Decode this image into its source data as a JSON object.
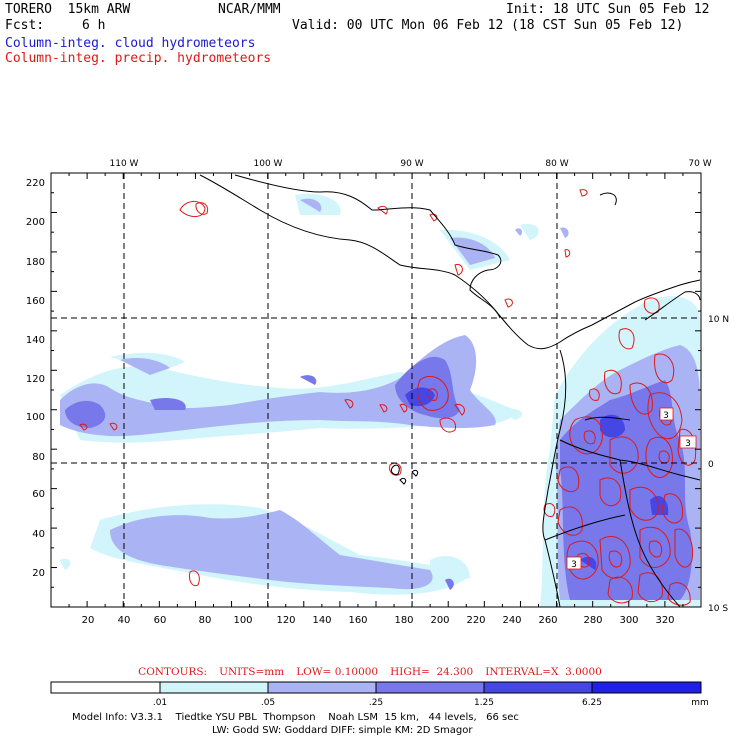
{
  "header": {
    "model": "TORERO  15km ARW",
    "org": "NCAR/MMM",
    "init": "Init: 18 UTC Sun 05 Feb 12",
    "fcst_label": "Fcst:",
    "fcst_value": "6 h",
    "valid": "Valid: 00 UTC Mon 06 Feb 12 (18 CST Sun 05 Feb 12)",
    "field1": "Column-integ. cloud hydrometeors",
    "field2": "Column-integ. precip. hydrometeors"
  },
  "colors": {
    "field1": "#1a1acc",
    "field2": "#e01818",
    "coast": "#000000"
  },
  "map": {
    "x_ticks": [
      "20",
      "40",
      "60",
      "80",
      "100",
      "120",
      "140",
      "160",
      "180",
      "200",
      "220",
      "240",
      "260",
      "280",
      "300",
      "320"
    ],
    "y_ticks": [
      "20",
      "40",
      "60",
      "80",
      "100",
      "120",
      "140",
      "160",
      "180",
      "200",
      "220"
    ],
    "lon_labels": [
      "110 W",
      "100 W",
      "90 W",
      "80 W",
      "70 W"
    ],
    "lat_labels": [
      "10 N",
      "0",
      "10 S"
    ],
    "contour_labels": [
      "3",
      "3",
      "3"
    ]
  },
  "contour_info": {
    "contours": "CONTOURS:",
    "units": "UNITS=mm",
    "low": "LOW= 0.10000",
    "high": "HIGH=  24.300",
    "interval": "INTERVAL=X  3.0000"
  },
  "colorbar": {
    "labels": [
      ".01",
      ".05",
      ".25",
      "1.25",
      "6.25"
    ],
    "unit": "mm",
    "colors": [
      "#ffffff",
      "#d2f5fb",
      "#aab4f5",
      "#7878ea",
      "#4646e4",
      "#2020e8"
    ]
  },
  "footer": {
    "line1": "Model Info: V3.3.1    Tiedtke YSU PBL  Thompson    Noah LSM  15 km,   44 levels,   66 sec",
    "line2": "LW: Godd SW: Goddard DIFF: simple KM: 2D Smagor"
  }
}
